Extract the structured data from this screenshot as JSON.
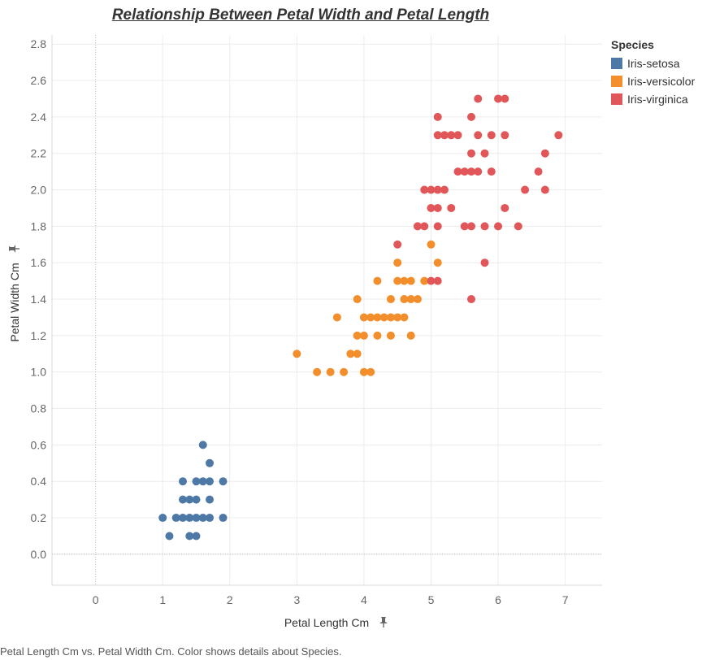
{
  "chart_data": {
    "type": "scatter",
    "title": "Relationship Between Petal Width and Petal Length",
    "xlabel": "Petal Length Cm",
    "ylabel": "Petal Width Cm",
    "xlim": [
      -0.65,
      7.55
    ],
    "ylim": [
      -0.17,
      2.85
    ],
    "x_ticks": [
      0,
      1,
      2,
      3,
      4,
      5,
      6,
      7
    ],
    "y_ticks": [
      0.0,
      0.2,
      0.4,
      0.6,
      0.8,
      1.0,
      1.2,
      1.4,
      1.6,
      1.8,
      2.0,
      2.2,
      2.4,
      2.6,
      2.8
    ],
    "legend": {
      "title": "Species",
      "position": "right"
    },
    "series": [
      {
        "name": "Iris-setosa",
        "color": "#4e79a7",
        "points": [
          [
            1.0,
            0.2
          ],
          [
            1.1,
            0.1
          ],
          [
            1.2,
            0.2
          ],
          [
            1.3,
            0.2
          ],
          [
            1.3,
            0.3
          ],
          [
            1.3,
            0.4
          ],
          [
            1.4,
            0.1
          ],
          [
            1.4,
            0.2
          ],
          [
            1.4,
            0.3
          ],
          [
            1.5,
            0.1
          ],
          [
            1.5,
            0.2
          ],
          [
            1.5,
            0.3
          ],
          [
            1.5,
            0.4
          ],
          [
            1.6,
            0.2
          ],
          [
            1.6,
            0.4
          ],
          [
            1.6,
            0.6
          ],
          [
            1.7,
            0.2
          ],
          [
            1.7,
            0.3
          ],
          [
            1.7,
            0.4
          ],
          [
            1.7,
            0.5
          ],
          [
            1.9,
            0.2
          ],
          [
            1.9,
            0.4
          ]
        ]
      },
      {
        "name": "Iris-versicolor",
        "color": "#f28e2b",
        "points": [
          [
            3.0,
            1.1
          ],
          [
            3.3,
            1.0
          ],
          [
            3.5,
            1.0
          ],
          [
            3.6,
            1.3
          ],
          [
            3.7,
            1.0
          ],
          [
            3.8,
            1.1
          ],
          [
            3.9,
            1.1
          ],
          [
            3.9,
            1.2
          ],
          [
            3.9,
            1.4
          ],
          [
            4.0,
            1.0
          ],
          [
            4.0,
            1.2
          ],
          [
            4.0,
            1.3
          ],
          [
            4.1,
            1.0
          ],
          [
            4.1,
            1.3
          ],
          [
            4.2,
            1.2
          ],
          [
            4.2,
            1.3
          ],
          [
            4.2,
            1.5
          ],
          [
            4.3,
            1.3
          ],
          [
            4.4,
            1.2
          ],
          [
            4.4,
            1.3
          ],
          [
            4.4,
            1.4
          ],
          [
            4.5,
            1.3
          ],
          [
            4.5,
            1.5
          ],
          [
            4.5,
            1.6
          ],
          [
            4.6,
            1.3
          ],
          [
            4.6,
            1.4
          ],
          [
            4.6,
            1.5
          ],
          [
            4.7,
            1.2
          ],
          [
            4.7,
            1.4
          ],
          [
            4.7,
            1.5
          ],
          [
            4.8,
            1.4
          ],
          [
            4.8,
            1.8
          ],
          [
            4.9,
            1.5
          ],
          [
            5.0,
            1.7
          ],
          [
            5.1,
            1.6
          ]
        ]
      },
      {
        "name": "Iris-virginica",
        "color": "#e15759",
        "points": [
          [
            4.5,
            1.7
          ],
          [
            4.8,
            1.8
          ],
          [
            4.9,
            1.8
          ],
          [
            4.9,
            2.0
          ],
          [
            5.0,
            1.5
          ],
          [
            5.0,
            1.9
          ],
          [
            5.0,
            2.0
          ],
          [
            5.1,
            1.5
          ],
          [
            5.1,
            1.8
          ],
          [
            5.1,
            1.9
          ],
          [
            5.1,
            2.0
          ],
          [
            5.1,
            2.3
          ],
          [
            5.1,
            2.4
          ],
          [
            5.2,
            2.0
          ],
          [
            5.2,
            2.3
          ],
          [
            5.3,
            1.9
          ],
          [
            5.3,
            2.3
          ],
          [
            5.4,
            2.1
          ],
          [
            5.4,
            2.3
          ],
          [
            5.5,
            1.8
          ],
          [
            5.5,
            2.1
          ],
          [
            5.6,
            1.4
          ],
          [
            5.6,
            1.8
          ],
          [
            5.6,
            2.1
          ],
          [
            5.6,
            2.2
          ],
          [
            5.6,
            2.4
          ],
          [
            5.7,
            2.1
          ],
          [
            5.7,
            2.3
          ],
          [
            5.7,
            2.5
          ],
          [
            5.8,
            1.6
          ],
          [
            5.8,
            1.8
          ],
          [
            5.8,
            2.2
          ],
          [
            5.9,
            2.1
          ],
          [
            5.9,
            2.3
          ],
          [
            6.0,
            1.8
          ],
          [
            6.0,
            2.5
          ],
          [
            6.1,
            1.9
          ],
          [
            6.1,
            2.3
          ],
          [
            6.1,
            2.5
          ],
          [
            6.3,
            1.8
          ],
          [
            6.4,
            2.0
          ],
          [
            6.6,
            2.1
          ],
          [
            6.7,
            2.0
          ],
          [
            6.7,
            2.2
          ],
          [
            6.9,
            2.3
          ]
        ]
      }
    ]
  },
  "caption": "Petal Length Cm vs. Petal Width Cm.  Color shows details about Species.",
  "icons": {
    "axis_pin": "pin-icon"
  }
}
